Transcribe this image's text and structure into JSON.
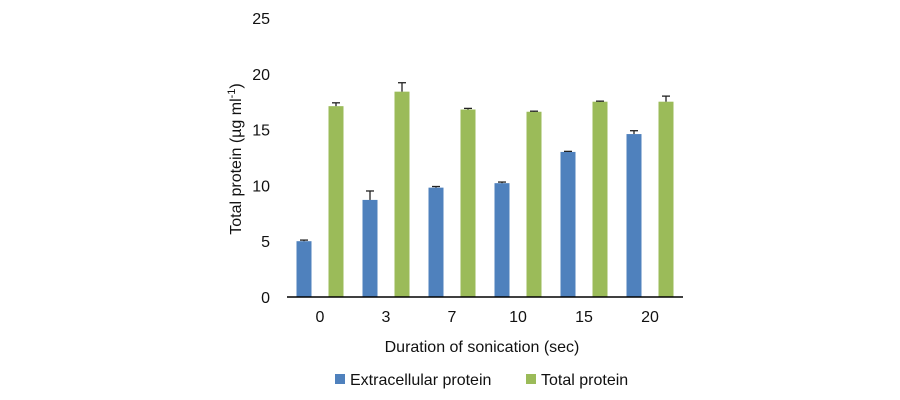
{
  "chart_data": {
    "type": "bar",
    "title": "",
    "xlabel": "Duration of sonication (sec)",
    "ylabel": "Total protein (µg ml",
    "ylabel_superscript": "-1",
    "ylabel_suffix": ")",
    "categories": [
      "0",
      "3",
      "7",
      "10",
      "15",
      "20"
    ],
    "ylim": [
      0,
      25
    ],
    "yticks": [
      "0",
      "5",
      "10",
      "15",
      "20",
      "25"
    ],
    "grid": false,
    "legend_position": "bottom",
    "series": [
      {
        "name": "Extracellular protein",
        "color": "#4f81bd",
        "values": [
          5.0,
          8.7,
          9.8,
          10.2,
          13.0,
          14.6
        ],
        "errors": [
          0.1,
          0.8,
          0.1,
          0.1,
          0.05,
          0.3
        ]
      },
      {
        "name": "Total protein",
        "color": "#9bbb59",
        "values": [
          17.1,
          18.4,
          16.8,
          16.6,
          17.5,
          17.5
        ],
        "errors": [
          0.3,
          0.8,
          0.1,
          0.05,
          0.05,
          0.5
        ]
      }
    ]
  }
}
